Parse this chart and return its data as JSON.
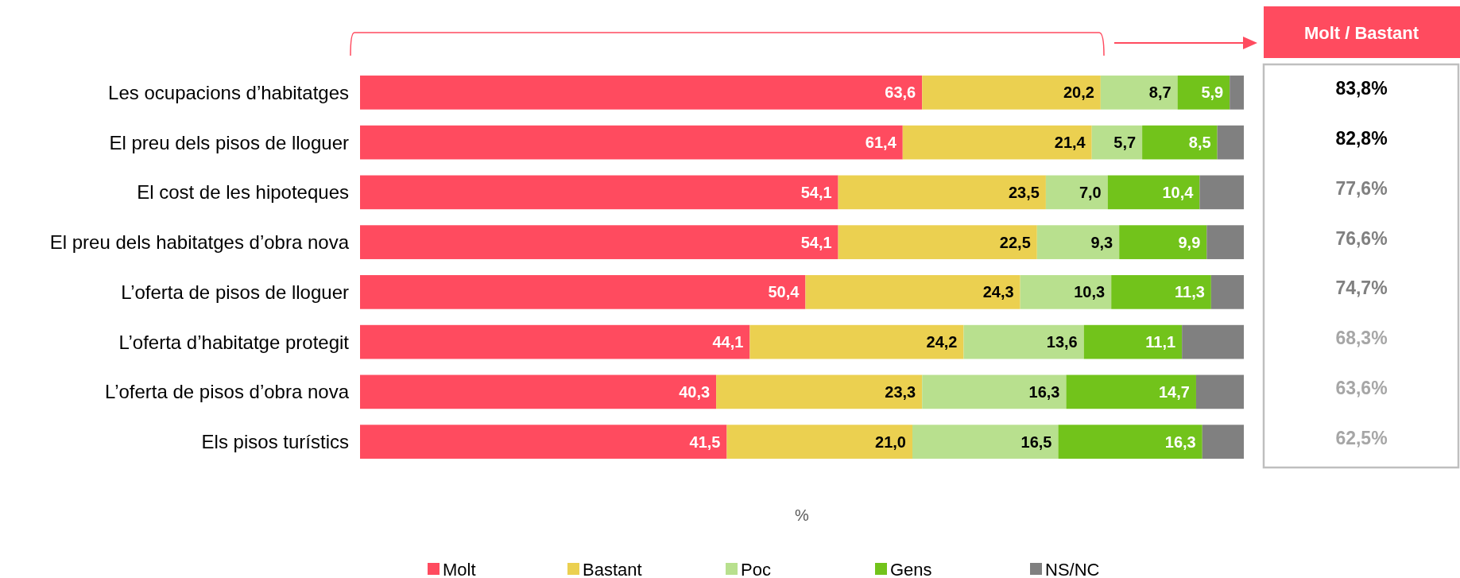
{
  "chart_data": {
    "type": "bar",
    "orientation": "horizontal",
    "stacked": true,
    "xlabel": "%",
    "legend": "bottom",
    "tick_labels": "y",
    "xlim": [
      0,
      100
    ],
    "categories": [
      "Les ocupacions d’habitatges",
      "El preu dels pisos de lloguer",
      "El cost de les hipoteques",
      "El preu dels habitatges d’obra nova",
      "L’oferta de pisos de lloguer",
      "L’oferta d’habitatge protegit",
      "L’oferta de pisos d’obra nova",
      "Els pisos turístics"
    ],
    "series": [
      {
        "name": "Molt",
        "color": "#ff4b5f",
        "values": [
          63.6,
          61.4,
          54.1,
          54.1,
          50.4,
          44.1,
          40.3,
          41.5
        ],
        "value_labels": [
          "63,6",
          "61,4",
          "54,1",
          "54,1",
          "50,4",
          "44,1",
          "40,3",
          "41,5"
        ]
      },
      {
        "name": "Bastant",
        "color": "#ebd050",
        "values": [
          20.2,
          21.4,
          23.5,
          22.5,
          24.3,
          24.2,
          23.3,
          21.0
        ],
        "value_labels": [
          "20,2",
          "21,4",
          "23,5",
          "22,5",
          "24,3",
          "24,2",
          "23,3",
          "21,0"
        ]
      },
      {
        "name": "Poc",
        "color": "#b8e08e",
        "values": [
          8.7,
          5.7,
          7.0,
          9.3,
          10.3,
          13.6,
          16.3,
          16.5
        ],
        "value_labels": [
          "8,7",
          "5,7",
          "7,0",
          "9,3",
          "10,3",
          "13,6",
          "16,3",
          "16,5"
        ]
      },
      {
        "name": "Gens",
        "color": "#72c31b",
        "values": [
          5.9,
          8.5,
          10.4,
          9.9,
          11.3,
          11.1,
          14.7,
          16.3
        ],
        "value_labels": [
          "5,9",
          "8,5",
          "10,4",
          "9,9",
          "11,3",
          "11,1",
          "14,7",
          "16,3"
        ]
      },
      {
        "name": "NS/NC",
        "color": "#808080",
        "values": [
          1.6,
          3.0,
          5.0,
          4.2,
          3.7,
          7.0,
          5.4,
          4.7
        ],
        "value_labels": [
          null,
          null,
          null,
          null,
          null,
          null,
          null,
          null
        ]
      }
    ],
    "annotations": [
      "Molt / Bastant",
      "83,8%",
      "82,8%",
      "77,6%",
      "76,6%",
      "74,7%",
      "68,3%",
      "63,6%",
      "62,5%"
    ]
  }
}
